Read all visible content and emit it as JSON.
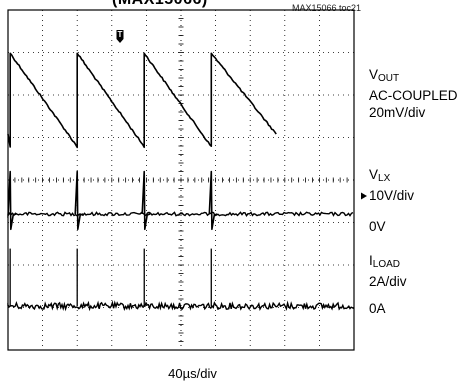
{
  "figure": {
    "title_fragment": "(MAX15066)",
    "ref_code": "MAX15066 toc21",
    "timebase": "40µs/div",
    "trigger_marker": "T"
  },
  "channels": [
    {
      "name_main": "V",
      "name_sub": "OUT",
      "lines": [
        "AC-COUPLED",
        "20mV/div"
      ]
    },
    {
      "name_main": "V",
      "name_sub": "LX",
      "lines": [
        "10V/div",
        "0V"
      ]
    },
    {
      "name_main": "I",
      "name_sub": "LOAD",
      "lines": [
        "2A/div",
        "0A"
      ]
    }
  ],
  "chart_data": {
    "type": "line",
    "title": "",
    "xlabel": "40µs/div",
    "x_unit": "µs",
    "x_range": [
      0,
      400
    ],
    "grid": {
      "divisions_x": 10,
      "divisions_y": 8,
      "visible": true
    },
    "period_us": 80,
    "spike_times_us": [
      2.5,
      80,
      157.5,
      235
    ],
    "series": [
      {
        "name": "VOUT",
        "coupling": "AC",
        "scale": "20mV/div",
        "shape": "sawtooth",
        "points_us_mV": [
          [
            0,
            -16
          ],
          [
            2.5,
            -22
          ],
          [
            2.5,
            22
          ],
          [
            80,
            -22
          ],
          [
            80,
            22
          ],
          [
            157.5,
            -22
          ],
          [
            157.5,
            22
          ],
          [
            235,
            -22
          ],
          [
            235,
            22
          ],
          [
            310,
            -16
          ]
        ]
      },
      {
        "name": "VLX",
        "scale": "10V/div",
        "reference": "0V",
        "baseline_V": 0,
        "spike_peak_V": 10,
        "spike_dip_V": -3.6,
        "noise_V": 0.8
      },
      {
        "name": "ILOAD",
        "scale": "2A/div",
        "reference": "0A",
        "baseline_A": 0,
        "pulse_peak_A": 2.7,
        "noise_A": 0.15
      }
    ]
  }
}
